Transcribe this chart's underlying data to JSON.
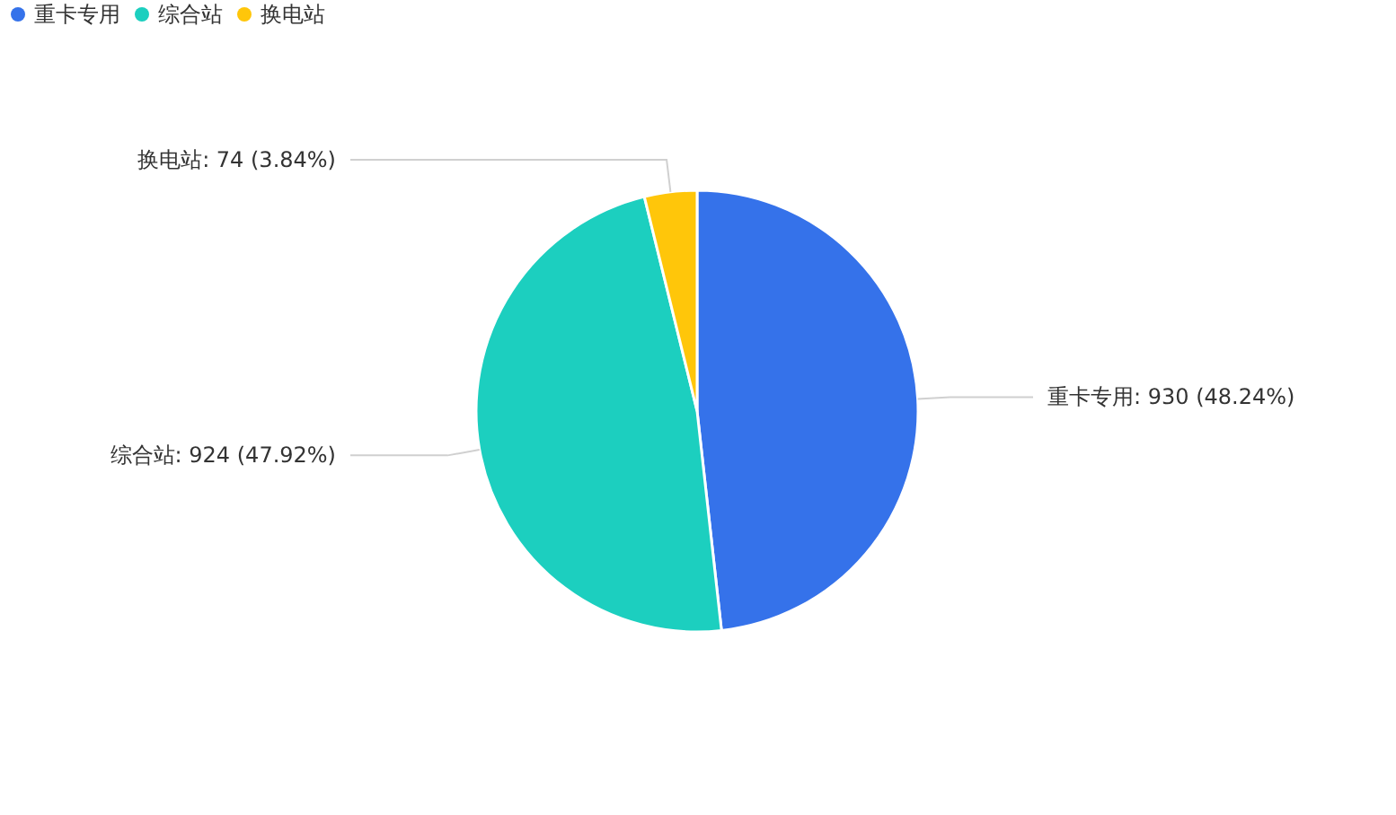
{
  "chart_data": {
    "type": "pie",
    "categories": [
      "重卡专用",
      "综合站",
      "换电站"
    ],
    "values": [
      930,
      924,
      74
    ],
    "colors": [
      "#3572ea",
      "#1ccfbf",
      "#ffc60a"
    ],
    "value_labels": [
      ": 930 (48.24%)",
      ": 924 (47.92%)",
      ": 74 (3.84%)"
    ],
    "legend": "top left"
  }
}
